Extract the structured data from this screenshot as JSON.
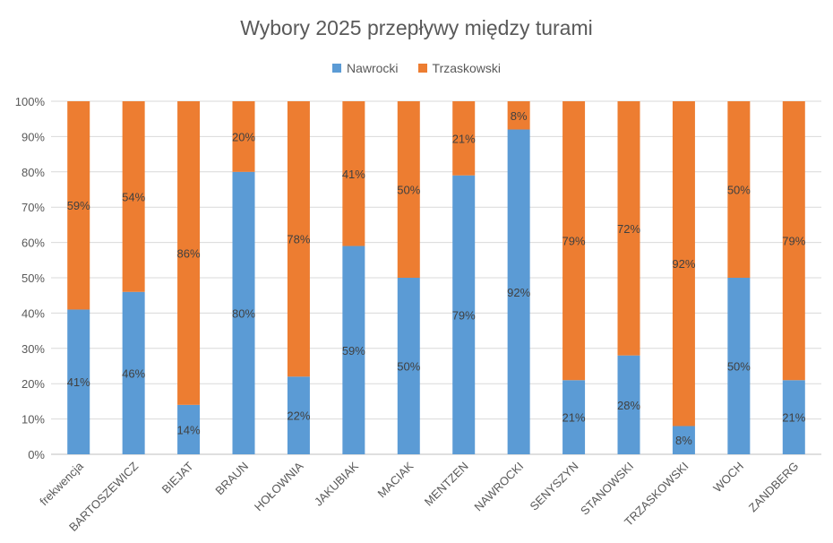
{
  "chart_data": {
    "type": "bar",
    "stacked": true,
    "title": "Wybory 2025 przepływy między turami",
    "categories": [
      "frekwencja",
      "BARTOSZEWICZ",
      "BIEJAT",
      "BRAUN",
      "HOŁOWNIA",
      "JAKUBIAK",
      "MACIAK",
      "MENTZEN",
      "NAWROCKI",
      "SENYSZYN",
      "STANOWSKI",
      "TRZASKOWSKI",
      "WOCH",
      "ZANDBERG"
    ],
    "series": [
      {
        "name": "Nawrocki",
        "color": "#5b9bd5",
        "values": [
          41,
          46,
          14,
          80,
          22,
          59,
          50,
          79,
          92,
          21,
          28,
          8,
          50,
          21
        ],
        "labels": [
          "41%",
          "46%",
          "14%",
          "80%",
          "22%",
          "59%",
          "50%",
          "79%",
          "92%",
          "21%",
          "28%",
          "8%",
          "50%",
          "21%"
        ]
      },
      {
        "name": "Trzaskowski",
        "color": "#ed7d31",
        "values": [
          59,
          54,
          86,
          20,
          78,
          41,
          50,
          21,
          8,
          79,
          72,
          92,
          50,
          79
        ],
        "labels": [
          "59%",
          "54%",
          "86%",
          "20%",
          "78%",
          "41%",
          "50%",
          "21%",
          "8%",
          "79%",
          "72%",
          "92%",
          "50%",
          "79%"
        ]
      }
    ],
    "ylim": [
      0,
      100
    ],
    "yticks": [
      "0%",
      "10%",
      "20%",
      "30%",
      "40%",
      "50%",
      "60%",
      "70%",
      "80%",
      "90%",
      "100%"
    ],
    "legend_position": "top",
    "grid": true
  }
}
